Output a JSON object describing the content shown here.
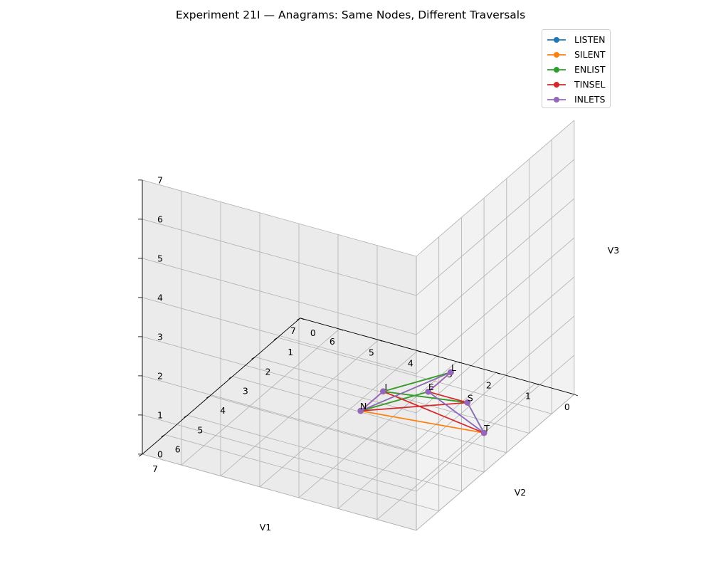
{
  "chart_data": {
    "type": "line3d",
    "title": "Experiment 21I — Anagrams: Same Nodes, Different Traversals",
    "xlabel": "V1",
    "ylabel": "V2",
    "zlabel": "V3",
    "xlim": [
      0,
      7
    ],
    "ylim": [
      0,
      7
    ],
    "zlim": [
      0,
      7
    ],
    "xticks": [
      "0",
      "1",
      "2",
      "3",
      "4",
      "5",
      "6",
      "7"
    ],
    "yticks": [
      "0",
      "1",
      "2",
      "3",
      "4",
      "5",
      "6",
      "7"
    ],
    "zticks": [
      "0",
      "1",
      "2",
      "3",
      "4",
      "5",
      "6",
      "7"
    ],
    "grid": true,
    "legend_position": "top-right",
    "nodes": {
      "L": [
        2,
        2,
        1
      ],
      "I": [
        2,
        5,
        2
      ],
      "S": [
        1,
        3,
        1
      ],
      "T": [
        0,
        4,
        1
      ],
      "E": [
        2,
        3,
        1
      ],
      "N": [
        2,
        6,
        2
      ]
    },
    "series": [
      {
        "name": "LISTEN",
        "color": "#1f77b4",
        "path": [
          "L",
          "I",
          "S",
          "T",
          "E",
          "N"
        ]
      },
      {
        "name": "SILENT",
        "color": "#ff7f0e",
        "path": [
          "S",
          "I",
          "L",
          "E",
          "N",
          "T"
        ]
      },
      {
        "name": "ENLIST",
        "color": "#2ca02c",
        "path": [
          "E",
          "N",
          "L",
          "I",
          "S",
          "T"
        ]
      },
      {
        "name": "TINSEL",
        "color": "#d62728",
        "path": [
          "T",
          "I",
          "N",
          "S",
          "E",
          "L"
        ]
      },
      {
        "name": "INLETS",
        "color": "#9467bd",
        "path": [
          "I",
          "N",
          "L",
          "E",
          "T",
          "S"
        ]
      }
    ]
  }
}
